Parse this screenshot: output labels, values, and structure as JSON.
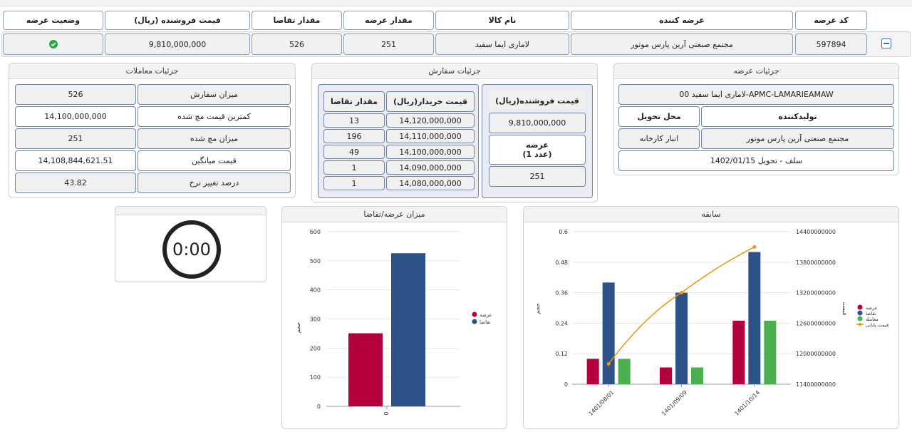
{
  "header": {
    "code": "کد عرضه",
    "supplier": "عرضه کننده",
    "product": "نام کالا",
    "offer_qty": "مقدار عرضه",
    "demand_qty": "مقدار تقاضا",
    "seller_price": "قیمت فروشنده (ریال)",
    "status": "وضعیت عرضه"
  },
  "row": {
    "code": "597894",
    "supplier": "مجتمع صنعتی آرین پارس موتور",
    "product": "لاماری ایما سفید",
    "offer_qty": "251",
    "demand_qty": "526",
    "seller_price": "9,810,000,000",
    "status_icon": "check-circle"
  },
  "offer_details": {
    "title": "جزئیات عرضه",
    "product_code": "لاماری ایما سفید 00-APMC-LAMARIEAMAW",
    "producer_label": "تولیدکننده",
    "delivery_label": "محل تحویل",
    "producer_value": "مجتمع صنعتی آرین پارس موتور",
    "delivery_value": "انبار کارخانه",
    "settlement": "سلف - تحویل 1402/01/15"
  },
  "order_details": {
    "title": "جزئیات سفارش",
    "seller_price_label": "قیمت فروشنده(ریال)",
    "seller_price_value": "9,810,000,000",
    "offer_label": "عرضه",
    "offer_unit": "(1 عدد)",
    "offer_value": "251",
    "buyer_price_header": "قیمت خریدار(ریال)",
    "demand_header": "مقدار تقاضا",
    "orders": [
      {
        "price": "14,120,000,000",
        "qty": "13"
      },
      {
        "price": "14,110,000,000",
        "qty": "196"
      },
      {
        "price": "14,100,000,000",
        "qty": "49"
      },
      {
        "price": "14,090,000,000",
        "qty": "1"
      },
      {
        "price": "14,080,000,000",
        "qty": "1"
      }
    ]
  },
  "trade_details": {
    "title": "جزئیات معاملات",
    "rows": [
      {
        "label": "میزان سفارش",
        "value": "526"
      },
      {
        "label": "کمترین قیمت مچ شده",
        "value": "14,100,000,000"
      },
      {
        "label": "میزان مچ شده",
        "value": "251"
      },
      {
        "label": "قیمت میانگین",
        "value": "14,108,844,621.51"
      },
      {
        "label": "درصد تغییر نرخ",
        "value": "43.82"
      }
    ]
  },
  "timer": {
    "value": "0:00"
  },
  "colors": {
    "offer": "#b5003f",
    "demand": "#2d5287",
    "trade": "#4caf50",
    "price": "#f0930f"
  },
  "chart_data": [
    {
      "type": "bar",
      "title": "میزان عرضه/تقاضا",
      "ylabel": "حجم",
      "categories": [
        "0"
      ],
      "series": [
        {
          "name": "عرضه",
          "values": [
            251
          ]
        },
        {
          "name": "تقاضا",
          "values": [
            526
          ]
        }
      ],
      "ylim": [
        0,
        600
      ],
      "yticks": [
        "0",
        "100",
        "200",
        "300",
        "400",
        "500",
        "600"
      ]
    },
    {
      "type": "bar",
      "title": "سابقه",
      "ylabel": "حجم",
      "y2label": "قیمت",
      "categories": [
        "1401/08/01",
        "1401/09/09",
        "1401/10/14"
      ],
      "series": [
        {
          "name": "عرضه",
          "values": [
            0.1,
            0.066,
            0.25
          ]
        },
        {
          "name": "تقاضا",
          "values": [
            0.4,
            0.36,
            0.52
          ]
        },
        {
          "name": "معامله",
          "values": [
            0.1,
            0.066,
            0.25
          ]
        }
      ],
      "line_series": {
        "name": "قیمت پایانی",
        "values": [
          11800000000,
          13200000000,
          14100000000
        ]
      },
      "ylim": [
        0,
        0.6
      ],
      "y2lim": [
        11400000000,
        14400000000
      ],
      "yticks": [
        "0",
        "0.12",
        "0.24",
        "0.36",
        "0.48",
        "0.6"
      ],
      "y2ticks": [
        "11400000000",
        "12000000000",
        "12600000000",
        "13200000000",
        "13800000000",
        "14400000000"
      ]
    }
  ]
}
